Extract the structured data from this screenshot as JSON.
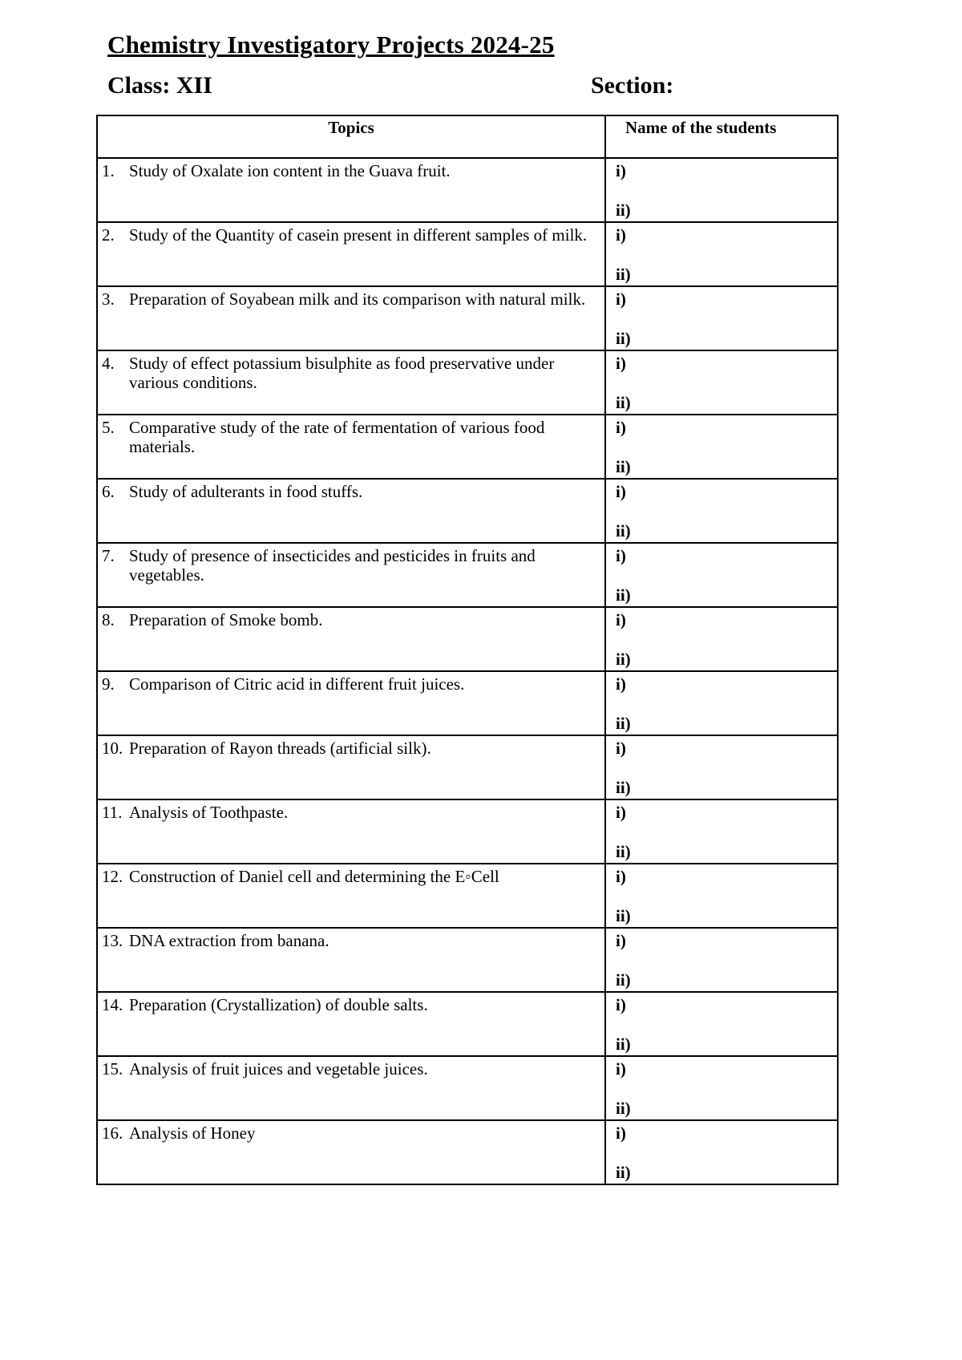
{
  "title": "Chemistry Investigatory Projects 2024-25",
  "class_label": "Class: XII",
  "section_label": "Section:",
  "table": {
    "headers": [
      "Topics",
      "Name of the students"
    ],
    "slots": [
      "i)",
      "ii)"
    ],
    "rows": [
      {
        "num": "1.",
        "topic": "Study of Oxalate ion content in the Guava fruit."
      },
      {
        "num": "2.",
        "topic": "Study of the Quantity of casein present in different samples of milk."
      },
      {
        "num": "3.",
        "topic": "Preparation of Soyabean milk and its comparison with natural milk."
      },
      {
        "num": "4.",
        "topic": "Study of effect potassium bisulphite as food preservative under various conditions."
      },
      {
        "num": "5.",
        "topic": "Comparative study of the rate of fermentation of various food materials."
      },
      {
        "num": "6.",
        "topic": "Study of adulterants in food stuffs."
      },
      {
        "num": "7.",
        "topic": "Study of presence of insecticides and pesticides in fruits and vegetables."
      },
      {
        "num": "8.",
        "topic": "Preparation of Smoke bomb."
      },
      {
        "num": "9.",
        "topic": "Comparison of Citric acid in different fruit juices."
      },
      {
        "num": "10.",
        "topic": "Preparation of Rayon threads (artificial silk)."
      },
      {
        "num": "11.",
        "topic": "Analysis of Toothpaste."
      },
      {
        "num": "12.",
        "topic": "Construction of Daniel cell and determining the E◦Cell"
      },
      {
        "num": "13.",
        "topic": "DNA extraction from banana."
      },
      {
        "num": "14.",
        "topic": "Preparation (Crystallization) of double salts."
      },
      {
        "num": "15.",
        "topic": "Analysis of fruit juices and vegetable juices."
      },
      {
        "num": "16.",
        "topic": "Analysis of Honey"
      }
    ]
  }
}
